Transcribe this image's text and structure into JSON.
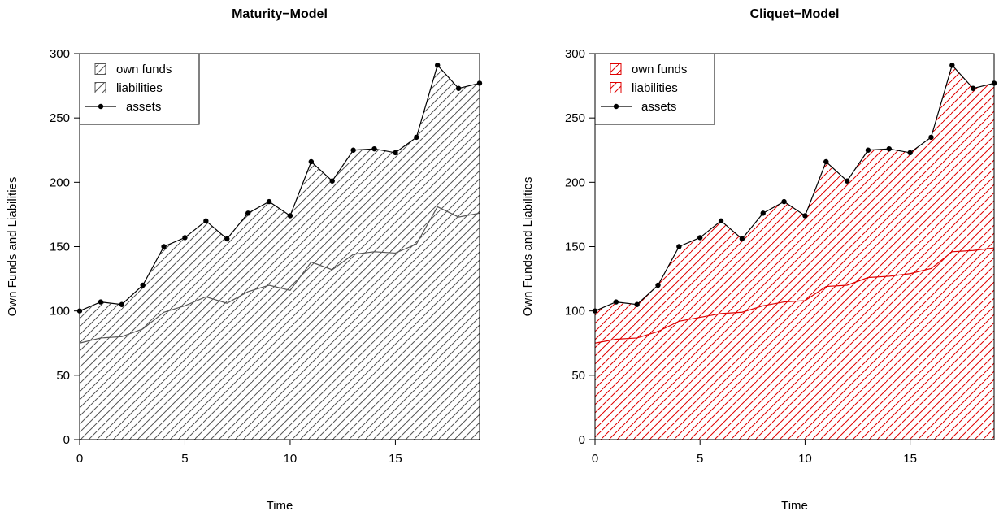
{
  "chart_data": [
    {
      "type": "area",
      "title": "Maturity−Model",
      "xlabel": "Time",
      "ylabel": "Own Funds and Liabilities",
      "xlim": [
        0,
        19
      ],
      "ylim": [
        0,
        300
      ],
      "xticks": [
        0,
        5,
        10,
        15
      ],
      "yticks": [
        0,
        50,
        100,
        150,
        200,
        250,
        300
      ],
      "color": "#555555",
      "legend_position": "top-left",
      "legend": [
        "own funds",
        "liabilities",
        "assets"
      ],
      "x": [
        0,
        1,
        2,
        3,
        4,
        5,
        6,
        7,
        8,
        9,
        10,
        11,
        12,
        13,
        14,
        15,
        16,
        17,
        18,
        19
      ],
      "series": [
        {
          "name": "assets",
          "values": [
            100,
            107,
            105,
            120,
            150,
            157,
            170,
            156,
            176,
            185,
            174,
            216,
            201,
            225,
            226,
            223,
            235,
            291,
            273,
            277
          ]
        },
        {
          "name": "liabilities",
          "values": [
            75,
            79,
            80,
            86,
            99,
            104,
            111,
            106,
            115,
            120,
            116,
            138,
            132,
            144,
            146,
            145,
            152,
            181,
            173,
            176
          ]
        }
      ]
    },
    {
      "type": "area",
      "title": "Cliquet−Model",
      "xlabel": "Time",
      "ylabel": "Own Funds and Liabilities",
      "xlim": [
        0,
        19
      ],
      "ylim": [
        0,
        300
      ],
      "xticks": [
        0,
        5,
        10,
        15
      ],
      "yticks": [
        0,
        50,
        100,
        150,
        200,
        250,
        300
      ],
      "color": "#e00000",
      "legend_position": "top-left",
      "legend": [
        "own funds",
        "liabilities",
        "assets"
      ],
      "x": [
        0,
        1,
        2,
        3,
        4,
        5,
        6,
        7,
        8,
        9,
        10,
        11,
        12,
        13,
        14,
        15,
        16,
        17,
        18,
        19
      ],
      "series": [
        {
          "name": "assets",
          "values": [
            100,
            107,
            105,
            120,
            150,
            157,
            170,
            156,
            176,
            185,
            174,
            216,
            201,
            225,
            226,
            223,
            235,
            291,
            273,
            277
          ]
        },
        {
          "name": "liabilities",
          "values": [
            75,
            78,
            79,
            84,
            92,
            95,
            98,
            99,
            104,
            107,
            108,
            119,
            120,
            126,
            127,
            129,
            133,
            146,
            147,
            149
          ]
        }
      ]
    }
  ]
}
